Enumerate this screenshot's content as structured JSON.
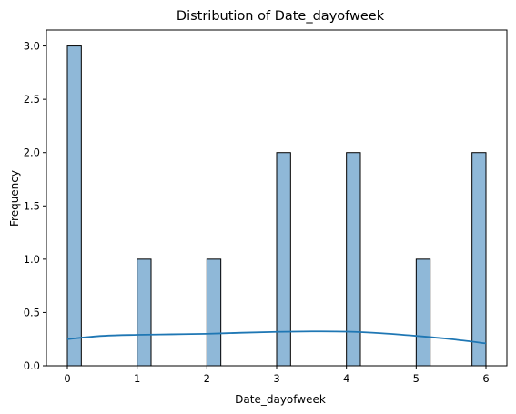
{
  "chart_data": {
    "type": "bar",
    "title": "Distribution of Date_dayofweek",
    "xlabel": "Date_dayofweek",
    "ylabel": "Frequency",
    "xlim": [
      -0.3,
      6.3
    ],
    "ylim": [
      0,
      3.15
    ],
    "xticks": [
      0,
      1,
      2,
      3,
      4,
      5,
      6
    ],
    "yticks": [
      0.0,
      0.5,
      1.0,
      1.5,
      2.0,
      2.5,
      3.0
    ],
    "xtick_labels": [
      "0",
      "1",
      "2",
      "3",
      "4",
      "5",
      "6"
    ],
    "ytick_labels": [
      "0.0",
      "0.5",
      "1.0",
      "1.5",
      "2.0",
      "2.5",
      "3.0"
    ],
    "bars": [
      {
        "x_start": 0.0,
        "x_end": 0.2,
        "value": 3
      },
      {
        "x_start": 1.0,
        "x_end": 1.2,
        "value": 1
      },
      {
        "x_start": 2.0,
        "x_end": 2.2,
        "value": 1
      },
      {
        "x_start": 3.0,
        "x_end": 3.2,
        "value": 2
      },
      {
        "x_start": 4.0,
        "x_end": 4.2,
        "value": 2
      },
      {
        "x_start": 5.0,
        "x_end": 5.2,
        "value": 1
      },
      {
        "x_start": 5.8,
        "x_end": 6.0,
        "value": 2
      }
    ],
    "kde": {
      "x": [
        0,
        0.5,
        1,
        1.5,
        2,
        2.5,
        3,
        3.5,
        4,
        4.5,
        5,
        5.5,
        6
      ],
      "y": [
        0.25,
        0.28,
        0.29,
        0.295,
        0.3,
        0.31,
        0.318,
        0.322,
        0.32,
        0.305,
        0.28,
        0.25,
        0.21
      ]
    },
    "bar_fill": "#8fb8d8",
    "bar_edge": "#000000",
    "line_color": "#1f77b4",
    "grid": false,
    "legend": "none"
  }
}
